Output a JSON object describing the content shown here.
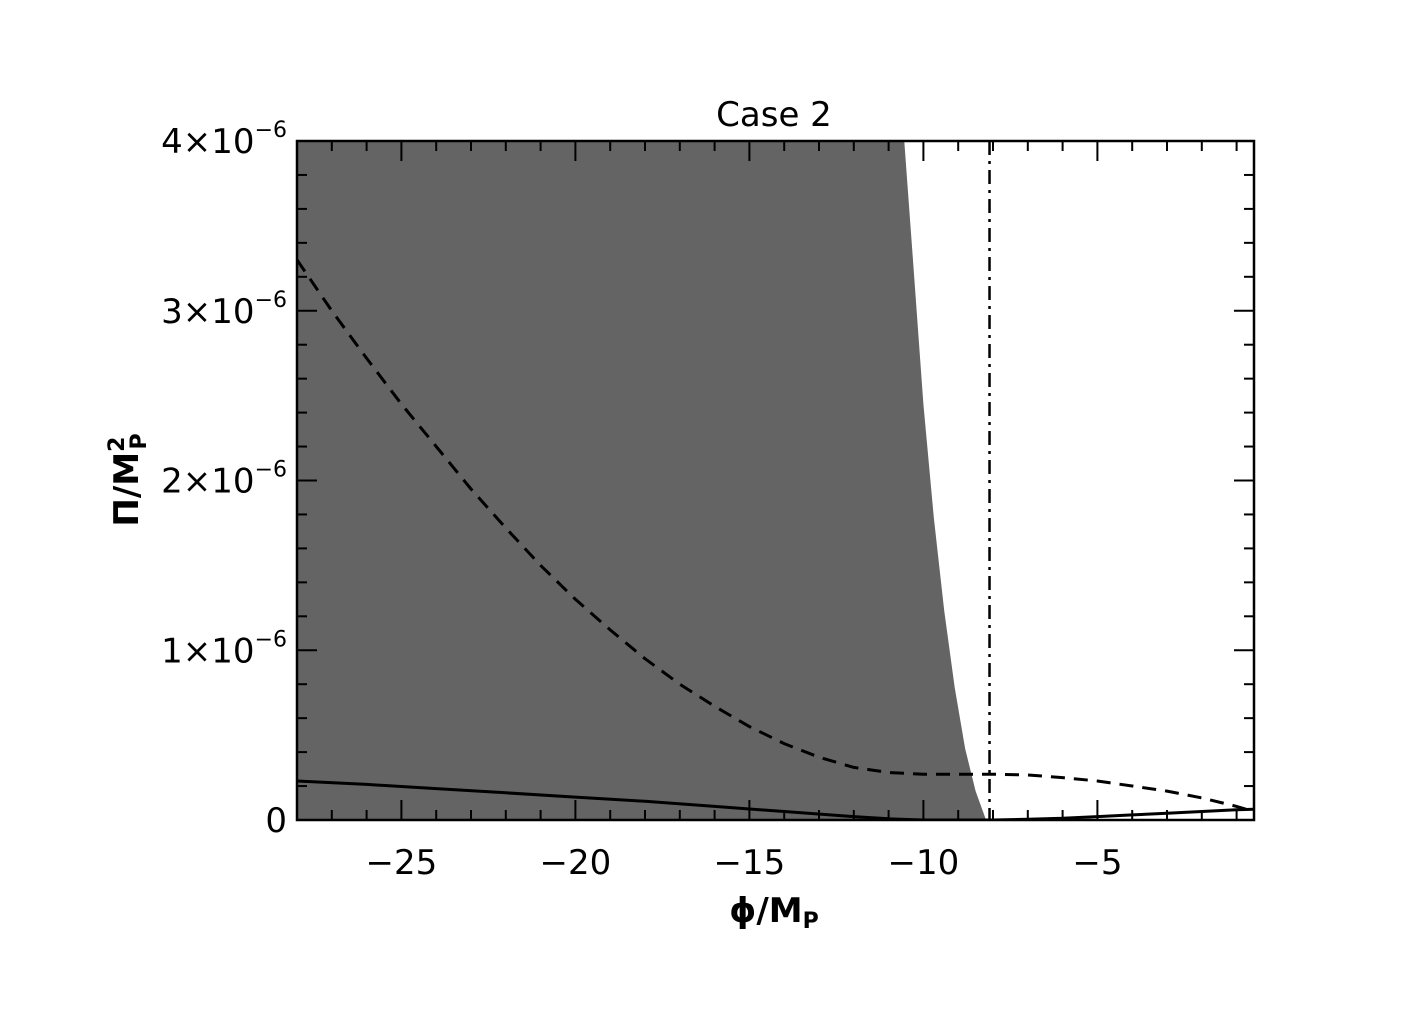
{
  "chart_data": {
    "type": "line",
    "title": "Case 2",
    "xlabel": {
      "main": "ϕ/M",
      "sub": "P"
    },
    "ylabel": {
      "main": "Π/M",
      "sup": "2",
      "sub": "P"
    },
    "xlim": [
      -28.0,
      -0.5
    ],
    "ylim": [
      0,
      4e-06
    ],
    "x_ticks": [
      {
        "value": -25,
        "label": "−25"
      },
      {
        "value": -20,
        "label": "−20"
      },
      {
        "value": -15,
        "label": "−15"
      },
      {
        "value": -10,
        "label": "−10"
      },
      {
        "value": -5,
        "label": "−5"
      }
    ],
    "y_ticks": [
      {
        "value": 0,
        "label": "0",
        "exp": ""
      },
      {
        "value": 1e-06,
        "label": "1×10",
        "exp": "−6"
      },
      {
        "value": 2e-06,
        "label": "2×10",
        "exp": "−6"
      },
      {
        "value": 3e-06,
        "label": "3×10",
        "exp": "−6"
      },
      {
        "value": 4e-06,
        "label": "4×10",
        "exp": "−6"
      }
    ],
    "shaded_region": {
      "color": "#646464",
      "upper_boundary": {
        "x": [
          -10.55,
          -10.3,
          -10.0,
          -9.7,
          -9.4,
          -9.1,
          -8.8,
          -8.5,
          -8.2
        ],
        "y": [
          4e-06,
          3.3e-06,
          2.45e-06,
          1.78e-06,
          1.23e-06,
          7.8e-07,
          4.2e-07,
          1.7e-07,
          0.0
        ]
      }
    },
    "series": [
      {
        "style": "dashed",
        "x": [
          -28,
          -27,
          -26,
          -25,
          -24,
          -23,
          -22,
          -21,
          -20,
          -19,
          -18,
          -17,
          -16,
          -15,
          -14,
          -13,
          -12,
          -11,
          -10,
          -9,
          -8,
          -7,
          -6,
          -5,
          -4,
          -3,
          -2,
          -1,
          -0.5
        ],
        "y": [
          3.3e-06,
          3e-06,
          2.72e-06,
          2.45e-06,
          2.2e-06,
          1.95e-06,
          1.72e-06,
          1.5e-06,
          1.3e-06,
          1.12e-06,
          9.5e-07,
          8e-07,
          6.7e-07,
          5.5e-07,
          4.5e-07,
          3.7e-07,
          3.1e-07,
          2.8e-07,
          2.7e-07,
          2.7e-07,
          2.7e-07,
          2.65e-07,
          2.5e-07,
          2.3e-07,
          2e-07,
          1.7e-07,
          1.3e-07,
          8e-08,
          5e-08
        ]
      },
      {
        "style": "solid",
        "x": [
          -28,
          -26,
          -24,
          -22,
          -20,
          -18,
          -16,
          -14,
          -12,
          -11,
          -10,
          -9,
          -8,
          -7,
          -6,
          -5,
          -4,
          -3,
          -2,
          -1,
          -0.5
        ],
        "y": [
          2.3e-07,
          2.1e-07,
          1.85e-07,
          1.6e-07,
          1.35e-07,
          1.1e-07,
          8e-08,
          5e-08,
          2e-08,
          7e-09,
          0.0,
          0.0,
          0.0,
          5e-09,
          1e-08,
          2e-08,
          3e-08,
          4e-08,
          5e-08,
          6e-08,
          6.3e-08
        ]
      }
    ],
    "vertical_line": {
      "x": -8.1,
      "style": "dash-dot"
    }
  }
}
